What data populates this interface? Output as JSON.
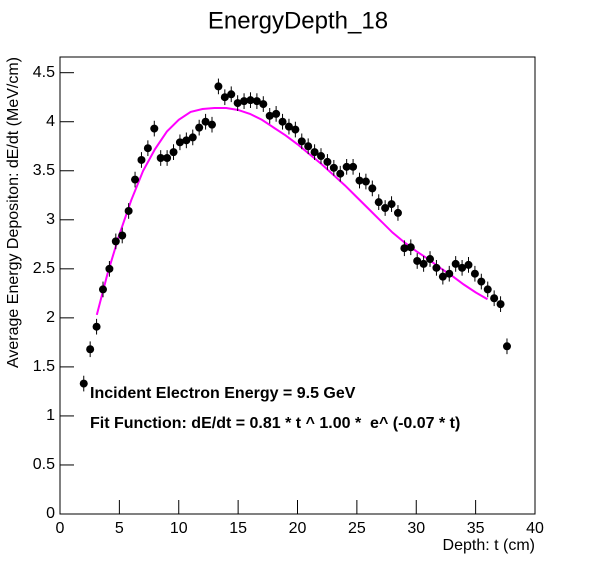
{
  "chart_data": {
    "type": "scatter",
    "title": "EnergyDepth_18",
    "xlabel": "Depth: t (cm)",
    "ylabel": "Average Energy Depositon: dE/dt (MeV/cm)",
    "annotations": [
      "Incident Electron Energy = 9.5 GeV",
      "Fit Function: dE/dt = 0.81 * t ^ 1.00 *  e^ (-0.07 * t)"
    ],
    "xlim": [
      0,
      40
    ],
    "xticks": [
      0,
      5,
      10,
      15,
      20,
      25,
      30,
      35,
      40
    ],
    "ylim": [
      0,
      4.66
    ],
    "yticks": [
      0,
      0.5,
      1,
      1.5,
      2,
      2.5,
      3,
      3.5,
      4,
      4.5
    ],
    "points": {
      "color": "#000000",
      "error": 0.08,
      "x": [
        2.0,
        2.54,
        3.08,
        3.62,
        4.16,
        4.7,
        5.24,
        5.78,
        6.32,
        6.86,
        7.4,
        7.94,
        8.48,
        9.02,
        9.56,
        10.1,
        10.64,
        11.18,
        11.72,
        12.26,
        12.8,
        13.34,
        13.88,
        14.42,
        14.96,
        15.5,
        16.04,
        16.58,
        17.12,
        17.66,
        18.2,
        18.74,
        19.28,
        19.82,
        20.36,
        20.9,
        21.44,
        21.98,
        22.52,
        23.06,
        23.6,
        24.14,
        24.68,
        25.22,
        25.76,
        26.3,
        26.84,
        27.38,
        27.92,
        28.46,
        29.0,
        29.54,
        30.08,
        30.62,
        31.16,
        31.7,
        32.24,
        32.78,
        33.32,
        33.86,
        34.4,
        34.94,
        35.48,
        36.02,
        36.56,
        37.1,
        37.64
      ],
      "values": [
        1.33,
        1.68,
        1.91,
        2.29,
        2.5,
        2.78,
        2.84,
        3.09,
        3.41,
        3.61,
        3.73,
        3.93,
        3.63,
        3.63,
        3.69,
        3.79,
        3.81,
        3.84,
        3.94,
        4.0,
        3.97,
        4.36,
        4.25,
        4.28,
        4.19,
        4.21,
        4.22,
        4.21,
        4.18,
        4.06,
        4.08,
        4.0,
        3.95,
        3.92,
        3.8,
        3.75,
        3.69,
        3.65,
        3.59,
        3.53,
        3.47,
        3.54,
        3.54,
        3.4,
        3.39,
        3.32,
        3.18,
        3.12,
        3.16,
        3.07,
        2.71,
        2.72,
        2.58,
        2.55,
        2.6,
        2.51,
        2.42,
        2.45,
        2.55,
        2.51,
        2.54,
        2.45,
        2.37,
        2.29,
        2.2,
        2.14,
        1.71
      ]
    },
    "fit": {
      "color": "#ff00ff",
      "x": [
        3.1,
        4,
        5,
        6,
        7,
        8,
        9,
        10,
        11,
        12,
        13,
        14,
        15,
        16,
        17,
        18,
        19,
        20,
        21,
        22,
        23,
        24,
        25,
        26,
        27,
        28,
        29,
        30,
        31,
        32,
        33,
        34,
        35,
        36
      ],
      "values": [
        2.03,
        2.45,
        2.85,
        3.2,
        3.5,
        3.72,
        3.9,
        4.02,
        4.1,
        4.13,
        4.14,
        4.14,
        4.12,
        4.08,
        4.02,
        3.94,
        3.86,
        3.77,
        3.67,
        3.57,
        3.46,
        3.35,
        3.23,
        3.11,
        2.99,
        2.87,
        2.77,
        2.68,
        2.6,
        2.51,
        2.43,
        2.34,
        2.26,
        2.19
      ]
    }
  }
}
